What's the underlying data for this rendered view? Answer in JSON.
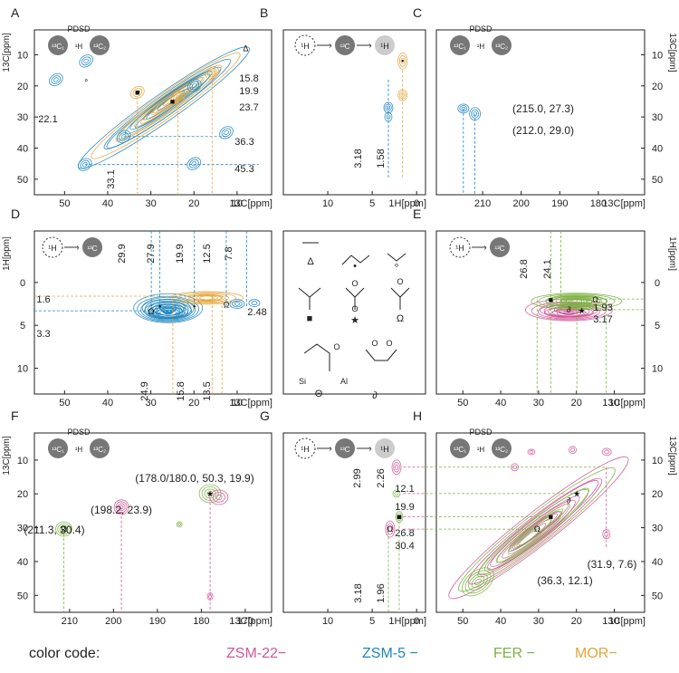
{
  "chart_data": {
    "type": "2D NMR correlation spectra (contour plots)",
    "colors": {
      "zsm22": "#d1569a",
      "zsm5": "#1e86c0",
      "fer": "#7cb342",
      "mor": "#e6a53a",
      "axis": "#222222"
    },
    "legend": {
      "title": "color code:",
      "entries": [
        {
          "name": "ZSM-22",
          "mark": "−",
          "color": "#d1569a"
        },
        {
          "name": "ZSM-5",
          "mark": "−",
          "color": "#1e86c0"
        },
        {
          "name": "FER",
          "mark": "−",
          "color": "#7cb342"
        },
        {
          "name": "MOR",
          "mark": "−",
          "color": "#e6a53a"
        }
      ]
    },
    "panels": [
      {
        "id": "A",
        "label": "A",
        "experiment": "PDSD",
        "xlabel": "13C[ppm]",
        "ylabel": "13C[ppm]",
        "xlim": [
          57,
          2
        ],
        "ylim": [
          2,
          55
        ],
        "xticks": [
          50,
          40,
          30,
          20,
          10
        ],
        "yticks": [
          10,
          20,
          30,
          40,
          50
        ],
        "annotations": [
          "15.8",
          "19.9",
          "23.7",
          "36.3",
          "45.3",
          "22.1",
          "33.1"
        ],
        "series": [
          "ZSM-5",
          "MOR"
        ]
      },
      {
        "id": "B",
        "label": "B",
        "experiment": "1H → 13C → 1H",
        "xlabel": "1H[ppm]",
        "ylabel": "",
        "xlim": [
          15,
          -1
        ],
        "ylim": [
          2,
          55
        ],
        "xticks": [
          10,
          5,
          0
        ],
        "annotations": [
          "1.58",
          "3.18"
        ],
        "series": [
          "ZSM-5",
          "MOR"
        ]
      },
      {
        "id": "C",
        "label": "C",
        "experiment": "PDSD",
        "xlabel": "13C[ppm]",
        "ylabel": "13C[ppm]",
        "xlim": [
          222,
          168
        ],
        "ylim": [
          2,
          55
        ],
        "xticks": [
          210,
          200,
          190,
          180
        ],
        "yticks": [
          10,
          20,
          30,
          40,
          50
        ],
        "annotations": [
          "(215.0, 27.3)",
          "(212.0, 29.0)"
        ],
        "series": [
          "ZSM-5"
        ]
      },
      {
        "id": "D",
        "label": "D",
        "experiment": "1H → 13C",
        "xlabel": "13C[ppm]",
        "ylabel": "1H[ppm]",
        "xlim": [
          57,
          2
        ],
        "ylim": [
          -6,
          13
        ],
        "xticks": [
          50,
          40,
          30,
          20,
          10
        ],
        "yticks": [
          0,
          5,
          10
        ],
        "annotations": [
          "29.9",
          "27.9",
          "19.9",
          "12.5",
          "7.8",
          "24.9",
          "15.8",
          "13.5",
          "1.6",
          "3.3",
          "2.48"
        ],
        "series": [
          "ZSM-5",
          "MOR"
        ]
      },
      {
        "id": "E",
        "label": "E",
        "experiment": "1H → 13C",
        "xlabel": "13C[ppm]",
        "ylabel": "1H[ppm]",
        "xlim": [
          57,
          2
        ],
        "ylim": [
          -6,
          13
        ],
        "xticks": [
          50,
          40,
          30,
          20,
          10
        ],
        "yticks": [
          0,
          5,
          10
        ],
        "annotations": [
          "26.8",
          "24.1",
          "1.93",
          "3.17"
        ],
        "series": [
          "ZSM-22",
          "FER"
        ]
      },
      {
        "id": "F",
        "label": "F",
        "experiment": "PDSD",
        "xlabel": "13C[ppm]",
        "ylabel": "13C[ppm]",
        "xlim": [
          218,
          164
        ],
        "ylim": [
          2,
          55
        ],
        "xticks": [
          210,
          200,
          190,
          180,
          170
        ],
        "yticks": [
          10,
          20,
          30,
          40,
          50
        ],
        "annotations": [
          "(178.0/180.0, 50.3, 19.9)",
          "(198.2, 23.9)",
          "(211.3, 30.4)"
        ],
        "series": [
          "ZSM-22",
          "FER"
        ]
      },
      {
        "id": "G",
        "label": "G",
        "experiment": "1H → 13C → 1H",
        "xlabel": "1H[ppm]",
        "ylabel": "",
        "xlim": [
          15,
          -1
        ],
        "ylim": [
          2,
          55
        ],
        "xticks": [
          10,
          5,
          0
        ],
        "annotations": [
          "2.99",
          "2.26",
          "12.1",
          "19.9",
          "26.8",
          "30.4",
          "3.18",
          "1.96"
        ],
        "series": [
          "ZSM-22",
          "FER"
        ]
      },
      {
        "id": "H",
        "label": "H",
        "experiment": "PDSD",
        "xlabel": "13C[ppm]",
        "ylabel": "13C[ppm]",
        "xlim": [
          57,
          2
        ],
        "ylim": [
          2,
          55
        ],
        "xticks": [
          50,
          40,
          30,
          20,
          10
        ],
        "yticks": [
          10,
          20,
          30,
          40,
          50
        ],
        "annotations": [
          "(31.9, 7.6)",
          "(36.3, 12.1)"
        ],
        "series": [
          "ZSM-22",
          "FER"
        ]
      }
    ],
    "structures_panel": {
      "symbols": [
        "Δ",
        "•",
        "∘",
        "■",
        "★",
        "Ω",
        "Θ",
        "∂"
      ],
      "atom_labels": [
        "O",
        "O",
        "O",
        "O",
        "Si",
        "Al",
        "O",
        "O"
      ]
    }
  }
}
